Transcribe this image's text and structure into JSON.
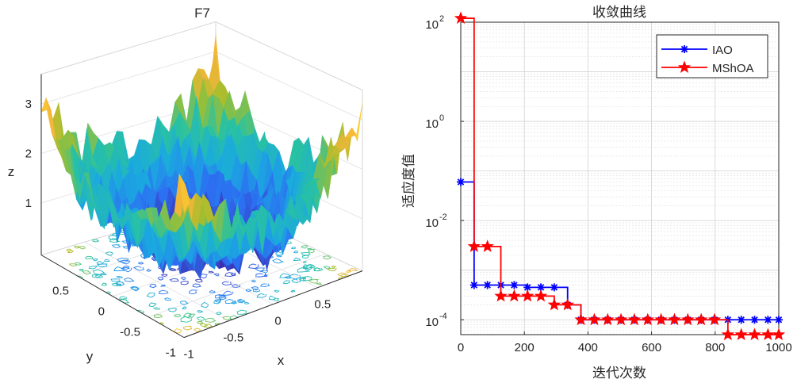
{
  "chart_data": [
    {
      "type": "surface",
      "title": "F7",
      "xlabel": "x",
      "ylabel": "y",
      "zlabel": "z",
      "xlim": [
        -1,
        1
      ],
      "ylim": [
        -1,
        1
      ],
      "zlim": [
        0,
        3.5
      ],
      "x_ticks": [
        "-1",
        "-0.5",
        "0",
        "0.5"
      ],
      "y_ticks": [
        "-1",
        "-0.5",
        "0",
        "0.5"
      ],
      "z_ticks": [
        "1",
        "2",
        "3"
      ],
      "colormap": [
        "#3e26a8",
        "#2c6ff2",
        "#1aa9e0",
        "#29c2a0",
        "#a5be2c",
        "#f6b53a",
        "#f9fb15"
      ]
    },
    {
      "type": "line",
      "title": "收敛曲线",
      "xlabel": "迭代次数",
      "ylabel": "适应度值",
      "xlim": [
        0,
        1000
      ],
      "ylim_exponent": [
        -4.3,
        2.0
      ],
      "yscale": "log",
      "grid": true,
      "legend_position": "top-right",
      "x_ticks": [
        "0",
        "200",
        "400",
        "600",
        "800",
        "1000"
      ],
      "y_ticks": [
        {
          "base": "10",
          "exp": "-4",
          "value": -4
        },
        {
          "base": "10",
          "exp": "-2",
          "value": -2
        },
        {
          "base": "10",
          "exp": "0",
          "value": 0
        },
        {
          "base": "10",
          "exp": "2",
          "value": 2
        }
      ],
      "series": [
        {
          "name": "IAO",
          "color": "#0000ff",
          "marker": "asterisk",
          "x": [
            0,
            42,
            84,
            126,
            168,
            210,
            252,
            294,
            336,
            378,
            420,
            462,
            504,
            546,
            588,
            630,
            672,
            714,
            756,
            798,
            840,
            882,
            924,
            966,
            1000
          ],
          "y": [
            0.06,
            0.0005,
            0.0005,
            0.0005,
            0.0005,
            0.00045,
            0.00045,
            0.00045,
            0.0002,
            0.0001,
            0.0001,
            0.0001,
            0.0001,
            0.0001,
            0.0001,
            0.0001,
            0.0001,
            0.0001,
            0.0001,
            0.0001,
            0.0001,
            0.0001,
            0.0001,
            0.0001,
            0.0001
          ]
        },
        {
          "name": "MShOA",
          "color": "#ff0000",
          "marker": "pentagram",
          "x": [
            0,
            42,
            84,
            126,
            168,
            210,
            252,
            294,
            336,
            378,
            420,
            462,
            504,
            546,
            588,
            630,
            672,
            714,
            756,
            798,
            840,
            882,
            924,
            966,
            1000
          ],
          "y": [
            120,
            0.003,
            0.003,
            0.0003,
            0.0003,
            0.0003,
            0.0003,
            0.0002,
            0.0002,
            0.0001,
            0.0001,
            0.0001,
            0.0001,
            0.0001,
            0.0001,
            0.0001,
            0.0001,
            0.0001,
            0.0001,
            0.0001,
            5e-05,
            5e-05,
            5e-05,
            5e-05,
            5e-05
          ]
        }
      ]
    }
  ]
}
